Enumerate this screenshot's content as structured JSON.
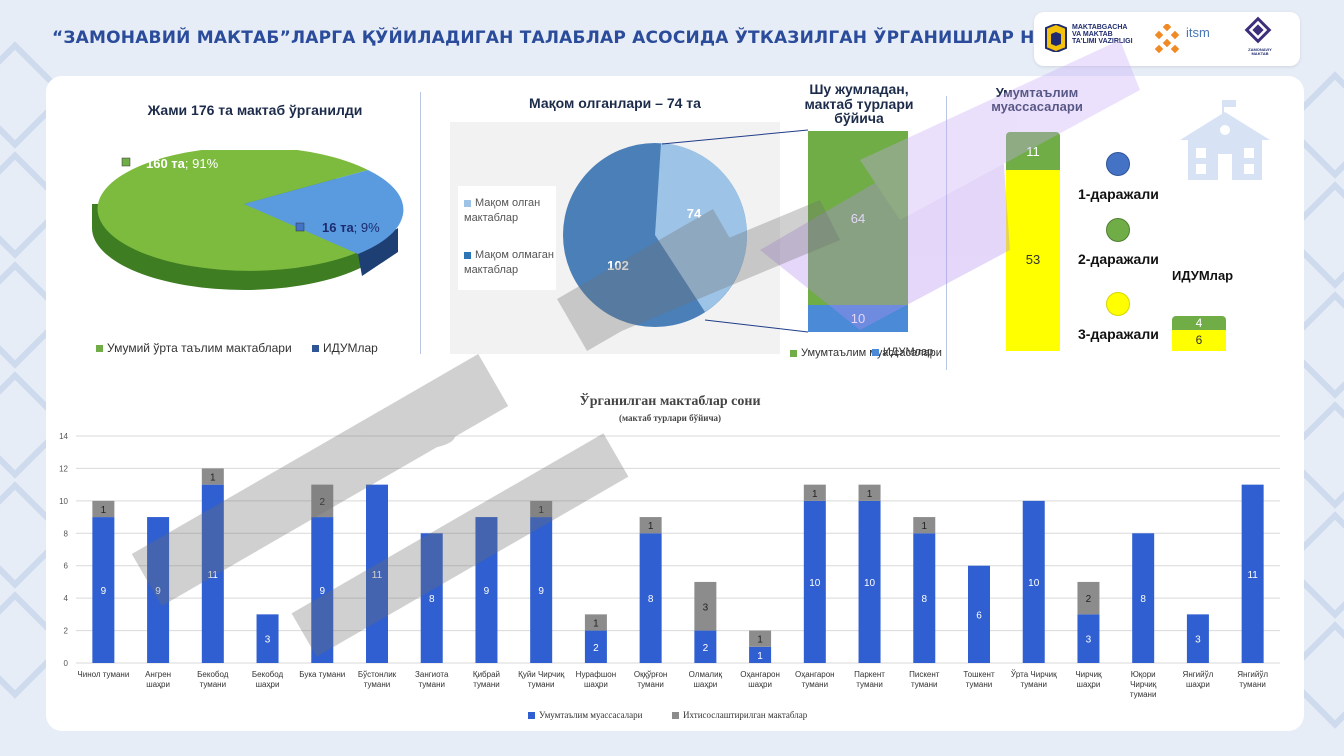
{
  "header": {
    "title": "“ЗАМОНАВИЙ МАКТАБ”ЛАРГА ҚЎЙИЛАДИГАН ТАЛАБЛАР АСОСИДА ЎТКАЗИЛГАН ЎРГАНИШЛАР НАТИЖАЛАРИ",
    "logo1_line1": "MAKTABGACHA",
    "logo1_line2": "VA MAKTAB",
    "logo1_line3": "TA'LIMI VAZIRLIGI",
    "logo2": "itsm",
    "logo3": "ZAMONAVIY MAKTAB"
  },
  "colors": {
    "accent": "#2b4c9b",
    "green": "#70ad47",
    "blue": "#4472c4",
    "yellow": "#ffff00",
    "bar_blue": "#2f5fd0",
    "bar_gray": "#8c8c8c"
  },
  "panel1": {
    "title": "Жами 176 та мактаб ўрганилди",
    "label_big": "160 та",
    "label_big_pct": "; 91%",
    "label_small": "16 та",
    "label_small_pct": "; 9%",
    "legend1": "Умумий ўрта таълим мактаблари",
    "legend2": "ИДУМлар"
  },
  "panel2": {
    "title": "Мақом олганлари – 74 та",
    "legend1": "Мақом олган мактаблар",
    "legend2": "Мақом олмаган мактаблар",
    "val_a": "74",
    "val_b": "102",
    "sub_title_1": "Шу жумладан,",
    "sub_title_2": "мактаб турлари",
    "sub_title_3": "бўйича",
    "stack_top": "64",
    "stack_bottom": "10",
    "legend3": "Умумтаълим муассасалари",
    "legend4": "ИДУМлар"
  },
  "panel3": {
    "title_1": "Умумтаълим",
    "title_2": "муассасалари",
    "big_top": "11",
    "big_bottom": "53",
    "level1": "1-даражали",
    "level2": "2-даражали",
    "level3": "3-даражали",
    "idum_title": "ИДУМлар",
    "small_top": "4",
    "small_bottom": "6"
  },
  "chart_data": [
    {
      "type": "pie",
      "title": "Жами 176 та мактаб ўрганилди",
      "categories": [
        "Умумий ўрта таълим мактаблари",
        "ИДУМлар"
      ],
      "values": [
        160,
        16
      ],
      "percents": [
        91,
        9
      ]
    },
    {
      "type": "pie",
      "title": "Мақом олганлари – 74 та",
      "categories": [
        "Мақом олган мактаблар",
        "Мақом олмаган мактаблар"
      ],
      "values": [
        74,
        102
      ]
    },
    {
      "type": "bar",
      "title": "Шу жумладан, мактаб турлари бўйича",
      "series": [
        {
          "name": "Умумтаълим муассасалари",
          "values": [
            64
          ]
        },
        {
          "name": "ИДУМлар",
          "values": [
            10
          ]
        }
      ]
    },
    {
      "type": "bar",
      "title": "Ўрганилган мактаблар сони",
      "subtitle": "(мактаб турлари бўйича)",
      "ylim": [
        0,
        14
      ],
      "yticks": [
        0,
        2,
        4,
        6,
        8,
        10,
        12,
        14
      ],
      "categories": [
        [
          "Чинол тумани"
        ],
        [
          "Ангрен",
          "шаҳри"
        ],
        [
          "Бекобод",
          "тумани"
        ],
        [
          "Бекобод",
          "шаҳри"
        ],
        [
          "Бука тумани"
        ],
        [
          "Бўстонлик",
          "тумани"
        ],
        [
          "Зангиота",
          "тумани"
        ],
        [
          "Қибрай",
          "тумани"
        ],
        [
          "Қуйи Чирчиқ",
          "тумани"
        ],
        [
          "Нурафшон",
          "шаҳри"
        ],
        [
          "Оққўрғон",
          "тумани"
        ],
        [
          "Олмалиқ",
          "шаҳри"
        ],
        [
          "Оҳангарон",
          "шаҳри"
        ],
        [
          "Оҳангарон",
          "тумани"
        ],
        [
          "Паркент",
          "тумани"
        ],
        [
          "Пискент",
          "тумани"
        ],
        [
          "Тошкент",
          "тумани"
        ],
        [
          "Ўрта Чирчиқ",
          "тумани"
        ],
        [
          "Чирчиқ",
          "шаҳри"
        ],
        [
          "Юқори",
          "Чирчиқ",
          "тумани"
        ],
        [
          "Янгийўл",
          "шаҳри"
        ],
        [
          "Янгийўл",
          "тумани"
        ]
      ],
      "series": [
        {
          "name": "Умумтаълим муассасалари",
          "values": [
            9,
            9,
            11,
            3,
            9,
            11,
            8,
            9,
            9,
            2,
            8,
            2,
            1,
            10,
            10,
            8,
            6,
            10,
            3,
            8,
            3,
            11
          ]
        },
        {
          "name": "Ихтисослаштирилган мактаблар",
          "values": [
            1,
            0,
            1,
            0,
            2,
            0,
            0,
            0,
            1,
            1,
            1,
            3,
            1,
            1,
            1,
            1,
            0,
            0,
            2,
            0,
            0,
            0
          ]
        }
      ]
    }
  ]
}
